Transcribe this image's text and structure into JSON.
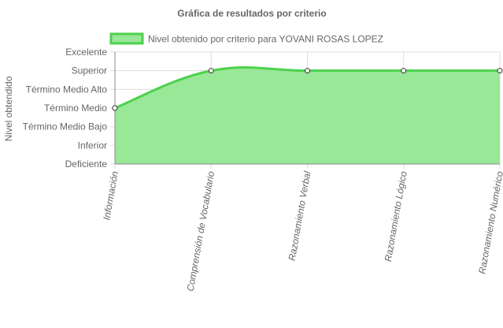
{
  "chart_data": {
    "type": "area",
    "title": "Gráfica de resultados por criterio",
    "ylabel": "Nivel obtendido",
    "xlabel": "",
    "y_levels": [
      "Deficiente",
      "Inferior",
      "Término Medio Bajo",
      "Término Medio",
      "Término Medio Alto",
      "Superior",
      "Excelente"
    ],
    "ylim": [
      0,
      6
    ],
    "categories": [
      "Información",
      "Comprensión de Vocabulario",
      "Razonamiento Verbal",
      "Razonamiento Lógico",
      "Razonamiento Numérico"
    ],
    "series": [
      {
        "name": "Nivel obtenido por criterio para YOVANI ROSAS LOPEZ",
        "values": [
          3,
          5,
          5,
          5,
          5
        ],
        "value_labels": [
          "Término Medio",
          "Superior",
          "Superior",
          "Superior",
          "Superior"
        ]
      }
    ],
    "grid": true,
    "legend_position": "top",
    "colors": {
      "line": "#4cd14c",
      "fill": "#98e898",
      "grid": "#dddddd",
      "axis": "#888888",
      "point_fill": "#ffffff",
      "point_stroke": "#333333"
    }
  }
}
